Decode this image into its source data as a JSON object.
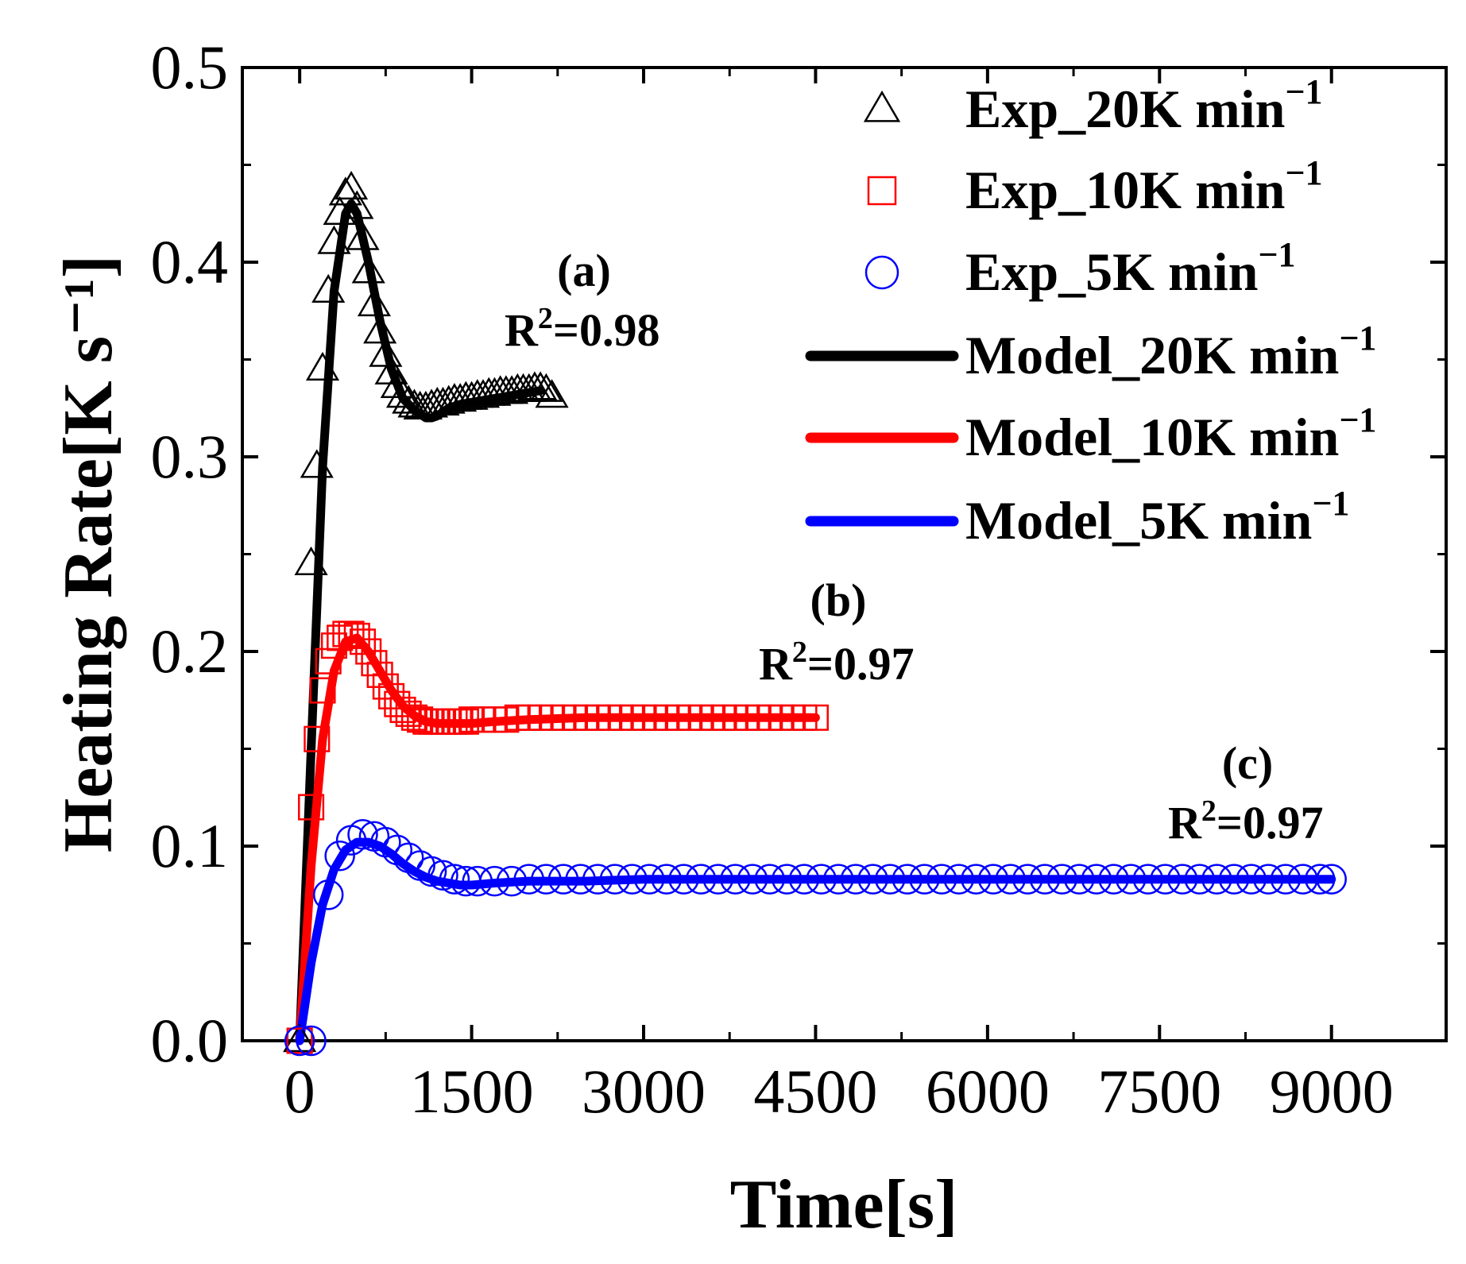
{
  "chart_data": {
    "type": "line",
    "xlabel": "Time[s]",
    "ylabel": "Heating Rate[K s⁻¹]",
    "xlim": [
      -500,
      10000
    ],
    "ylim": [
      0,
      0.5
    ],
    "xticks": [
      0,
      1500,
      3000,
      4500,
      6000,
      7500,
      9000
    ],
    "xtick_labels": [
      "0",
      "1500",
      "3000",
      "4500",
      "6000",
      "7500",
      "9000"
    ],
    "yticks": [
      0,
      0.1,
      0.2,
      0.3,
      0.4,
      0.5
    ],
    "ytick_labels": [
      "0.0",
      "0.1",
      "0.2",
      "0.3",
      "0.4",
      "0.5"
    ],
    "grid": false,
    "legend_position": "top-right",
    "series": [
      {
        "name": "Exp_20K min",
        "name_sup": "−1",
        "kind": "scatter",
        "marker": "triangle",
        "color": "#000000",
        "x": [
          0,
          100,
          150,
          200,
          250,
          300,
          350,
          400,
          450,
          500,
          550,
          600,
          650,
          700,
          750,
          800,
          850,
          900,
          950,
          1000,
          1050,
          1100,
          1150,
          1200,
          1250,
          1300,
          1350,
          1400,
          1450,
          1500,
          1550,
          1600,
          1650,
          1700,
          1750,
          1800,
          1850,
          1900,
          1950,
          2000,
          2050,
          2100,
          2150,
          2200
        ],
        "y": [
          0.0,
          0.245,
          0.295,
          0.345,
          0.385,
          0.41,
          0.425,
          0.435,
          0.438,
          0.428,
          0.412,
          0.395,
          0.378,
          0.364,
          0.352,
          0.343,
          0.336,
          0.331,
          0.328,
          0.326,
          0.325,
          0.325,
          0.326,
          0.327,
          0.327,
          0.328,
          0.329,
          0.329,
          0.33,
          0.33,
          0.331,
          0.331,
          0.332,
          0.332,
          0.333,
          0.333,
          0.333,
          0.334,
          0.334,
          0.334,
          0.335,
          0.335,
          0.334,
          0.331
        ]
      },
      {
        "name": "Exp_10K min",
        "name_sup": "−1",
        "kind": "scatter",
        "marker": "square",
        "color": "#ff0000",
        "x": [
          0,
          100,
          150,
          200,
          250,
          300,
          350,
          400,
          450,
          500,
          550,
          600,
          650,
          700,
          750,
          800,
          850,
          900,
          950,
          1000,
          1050,
          1100,
          1150,
          1200,
          1250,
          1300,
          1350,
          1400,
          1450,
          1500,
          1600,
          1700,
          1800,
          1900,
          2000,
          2100,
          2200,
          2300,
          2400,
          2500,
          2600,
          2700,
          2800,
          2900,
          3000,
          3100,
          3200,
          3300,
          3400,
          3500,
          3600,
          3700,
          3800,
          3900,
          4000,
          4100,
          4200,
          4300,
          4400,
          4500
        ],
        "y": [
          0.0,
          0.12,
          0.155,
          0.18,
          0.195,
          0.203,
          0.207,
          0.209,
          0.209,
          0.208,
          0.205,
          0.2,
          0.194,
          0.188,
          0.182,
          0.177,
          0.173,
          0.17,
          0.168,
          0.166,
          0.165,
          0.164,
          0.164,
          0.164,
          0.164,
          0.164,
          0.164,
          0.164,
          0.164,
          0.165,
          0.165,
          0.165,
          0.165,
          0.166,
          0.166,
          0.166,
          0.166,
          0.166,
          0.166,
          0.166,
          0.166,
          0.166,
          0.166,
          0.166,
          0.166,
          0.166,
          0.166,
          0.166,
          0.166,
          0.166,
          0.166,
          0.166,
          0.166,
          0.166,
          0.166,
          0.166,
          0.166,
          0.166,
          0.166,
          0.166
        ]
      },
      {
        "name": "Exp_5K min",
        "name_sup": "−1",
        "kind": "scatter",
        "marker": "circle",
        "color": "#0000ff",
        "x": [
          0,
          100,
          250,
          350,
          450,
          550,
          650,
          750,
          850,
          950,
          1050,
          1150,
          1250,
          1350,
          1450,
          1550,
          1700,
          1850,
          2000,
          2150,
          2300,
          2450,
          2600,
          2750,
          2900,
          3050,
          3200,
          3350,
          3500,
          3650,
          3800,
          3950,
          4100,
          4250,
          4400,
          4550,
          4700,
          4850,
          5000,
          5150,
          5300,
          5450,
          5600,
          5750,
          5900,
          6050,
          6200,
          6350,
          6500,
          6650,
          6800,
          6950,
          7100,
          7250,
          7400,
          7550,
          7700,
          7850,
          8000,
          8150,
          8300,
          8450,
          8600,
          8750,
          8900,
          9000
        ],
        "y": [
          0.0,
          0.0,
          0.075,
          0.095,
          0.103,
          0.106,
          0.105,
          0.102,
          0.098,
          0.094,
          0.09,
          0.087,
          0.085,
          0.083,
          0.082,
          0.082,
          0.082,
          0.082,
          0.083,
          0.083,
          0.083,
          0.083,
          0.083,
          0.083,
          0.083,
          0.083,
          0.083,
          0.083,
          0.083,
          0.083,
          0.083,
          0.083,
          0.083,
          0.083,
          0.083,
          0.083,
          0.083,
          0.083,
          0.083,
          0.083,
          0.083,
          0.083,
          0.083,
          0.083,
          0.083,
          0.083,
          0.083,
          0.083,
          0.083,
          0.083,
          0.083,
          0.083,
          0.083,
          0.083,
          0.083,
          0.083,
          0.083,
          0.083,
          0.083,
          0.083,
          0.083,
          0.083,
          0.083,
          0.083,
          0.083,
          0.083
        ]
      },
      {
        "name": "Model_20K min",
        "name_sup": "−1",
        "kind": "line",
        "color": "#000000",
        "x": [
          0,
          100,
          200,
          300,
          400,
          450,
          500,
          600,
          700,
          800,
          900,
          1000,
          1100,
          1150,
          1200,
          1300,
          1400,
          1600,
          1800,
          2000,
          2100
        ],
        "y": [
          0.0,
          0.15,
          0.295,
          0.385,
          0.425,
          0.43,
          0.425,
          0.4,
          0.37,
          0.345,
          0.33,
          0.324,
          0.32,
          0.32,
          0.321,
          0.325,
          0.327,
          0.329,
          0.331,
          0.333,
          0.334
        ]
      },
      {
        "name": "Model_10K min",
        "name_sup": "−1",
        "kind": "line",
        "color": "#ff0000",
        "x": [
          0,
          100,
          200,
          300,
          400,
          500,
          600,
          700,
          800,
          900,
          1000,
          1100,
          1200,
          1300,
          1400,
          1500,
          1700,
          2000,
          2500,
          3000,
          3500,
          4000,
          4500
        ],
        "y": [
          0.0,
          0.09,
          0.155,
          0.19,
          0.205,
          0.207,
          0.2,
          0.19,
          0.18,
          0.172,
          0.167,
          0.164,
          0.163,
          0.163,
          0.163,
          0.163,
          0.164,
          0.165,
          0.166,
          0.166,
          0.166,
          0.166,
          0.166
        ]
      },
      {
        "name": "Model_5K min",
        "name_sup": "−1",
        "kind": "line",
        "color": "#0000ff",
        "x": [
          0,
          100,
          200,
          300,
          400,
          500,
          600,
          700,
          800,
          900,
          1000,
          1100,
          1200,
          1300,
          1400,
          1500,
          1700,
          2000,
          2500,
          3000,
          4000,
          5000,
          6000,
          7000,
          8000,
          9000
        ],
        "y": [
          0.0,
          0.04,
          0.07,
          0.088,
          0.098,
          0.102,
          0.102,
          0.1,
          0.096,
          0.091,
          0.087,
          0.084,
          0.082,
          0.081,
          0.08,
          0.08,
          0.081,
          0.082,
          0.082,
          0.083,
          0.083,
          0.083,
          0.083,
          0.083,
          0.083,
          0.083
        ]
      }
    ],
    "annotations": [
      {
        "label": "(a)",
        "r2_prefix": "R",
        "r2_sup": "2",
        "r2_value": "=0.98"
      },
      {
        "label": "(b)",
        "r2_prefix": "R",
        "r2_sup": "2",
        "r2_value": "=0.97"
      },
      {
        "label": "(c)",
        "r2_prefix": "R",
        "r2_sup": "2",
        "r2_value": "=0.97"
      }
    ]
  }
}
